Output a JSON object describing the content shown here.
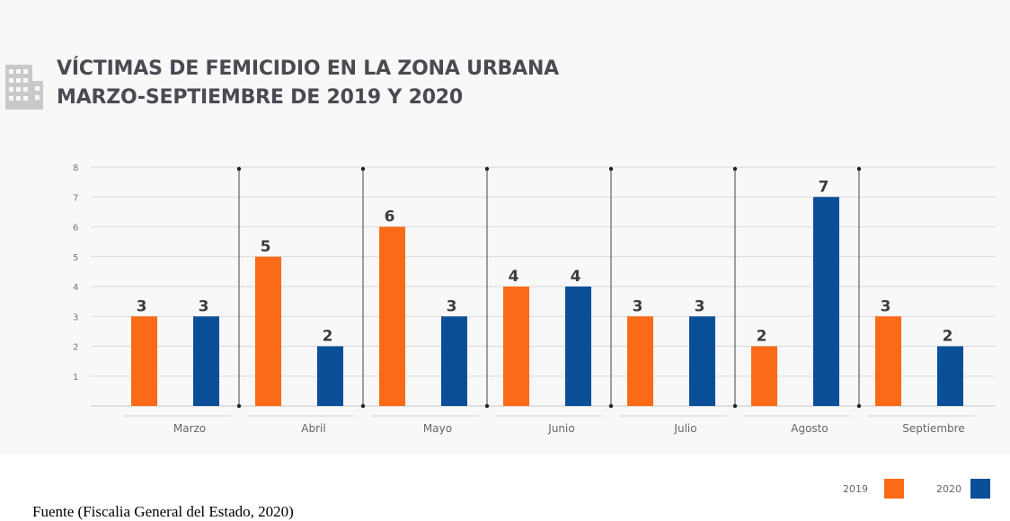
{
  "title_line1": "VÍCTIMAS DE FEMICIDIO EN LA ZONA URBANA",
  "title_line2": "MARZO-SEPTIEMBRE DE 2019 Y 2020",
  "source": "Fuente (Fiscalia General del Estado, 2020)",
  "colors": {
    "series_2019": "#fb6a16",
    "series_2020": "#0b4f99"
  },
  "chart_data": {
    "type": "bar",
    "categories": [
      "Marzo",
      "Abril",
      "Mayo",
      "Junio",
      "Julio",
      "Agosto",
      "Septiembre"
    ],
    "series": [
      {
        "name": "2019",
        "values": [
          3,
          5,
          6,
          4,
          3,
          2,
          3
        ]
      },
      {
        "name": "2020",
        "values": [
          3,
          2,
          3,
          4,
          3,
          7,
          2
        ]
      }
    ],
    "yticks": [
      "1",
      "2",
      "3",
      "4",
      "5",
      "6",
      "7",
      "8"
    ],
    "ylim": [
      0,
      8
    ],
    "grid": true,
    "legend": "bottom-right"
  }
}
